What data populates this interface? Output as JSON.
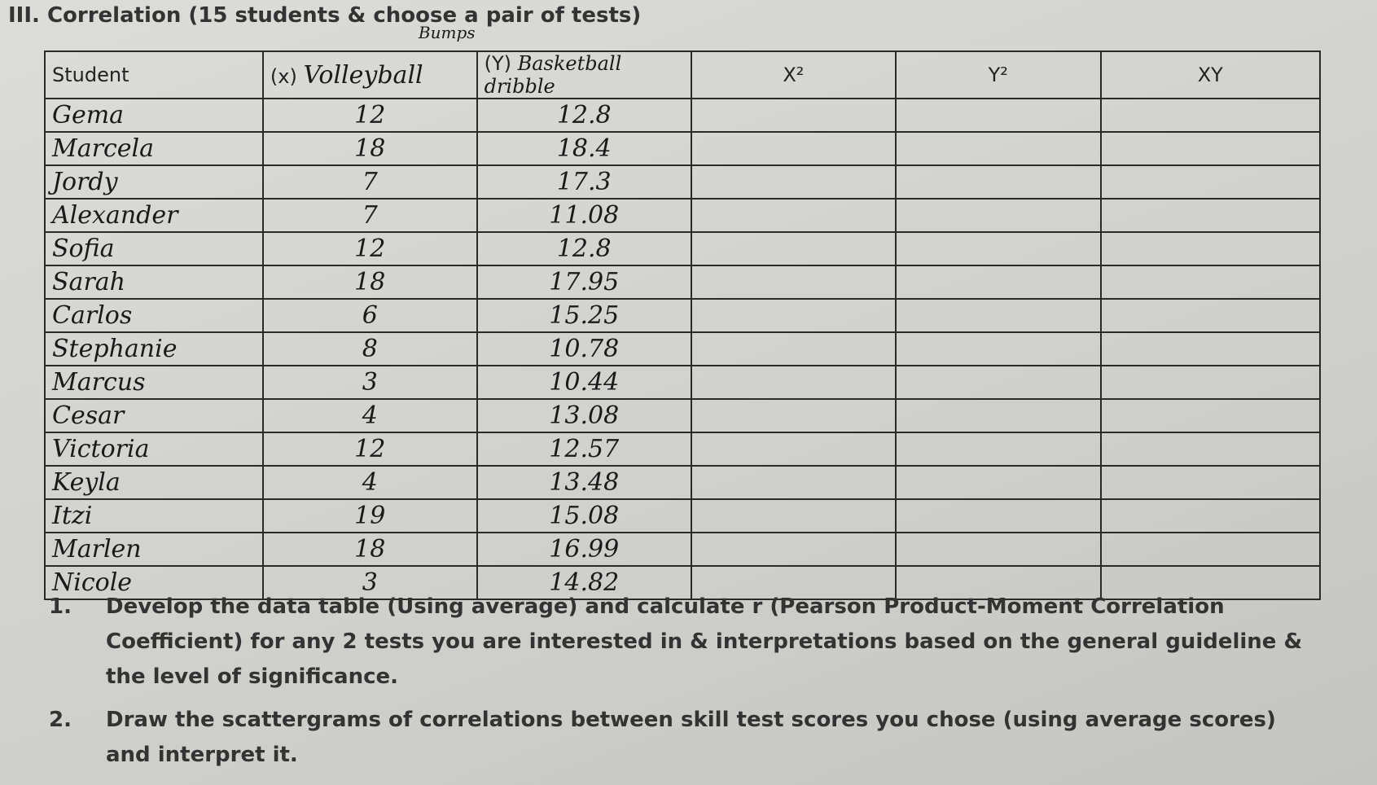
{
  "title": "III. Correlation (15 students & choose a pair of tests)",
  "table": {
    "headers": [
      "Student",
      "(x)",
      "(Y)",
      "X²",
      "Y²",
      "XY"
    ],
    "header_notes": {
      "x_test": "Volleyball",
      "x_test_above": "Bumps",
      "y_test": "Basketball dribble"
    },
    "rows": [
      [
        "Gema",
        "12",
        "12.8"
      ],
      [
        "Marcela",
        "18",
        "18.4"
      ],
      [
        "Jordy",
        "7",
        "17.3"
      ],
      [
        "Alexander",
        "7",
        "11.08"
      ],
      [
        "Sofia",
        "12",
        "12.8"
      ],
      [
        "Sarah",
        "18",
        "17.95"
      ],
      [
        "Carlos",
        "6",
        "15.25"
      ],
      [
        "Stephanie",
        "8",
        "10.78"
      ],
      [
        "Marcus",
        "3",
        "10.44"
      ],
      [
        "Cesar",
        "4",
        "13.08"
      ],
      [
        "Victoria",
        "12",
        "12.57"
      ],
      [
        "Keyla",
        "4",
        "13.48"
      ],
      [
        "Itzi",
        "19",
        "15.08"
      ],
      [
        "Marlen",
        "18",
        "16.99"
      ],
      [
        "Nicole",
        "3",
        "14.82"
      ]
    ]
  },
  "instructions": [
    {
      "number": "1.",
      "text": "Develop the data table (Using average) and calculate r (Pearson Product-Moment Correlation Coefficient) for any 2 tests you are interested in & interpretations based on the general guideline & the level of significance."
    },
    {
      "number": "2.",
      "text": "Draw the scattergrams of correlations between skill test scores you chose (using average scores) and interpret it."
    }
  ]
}
